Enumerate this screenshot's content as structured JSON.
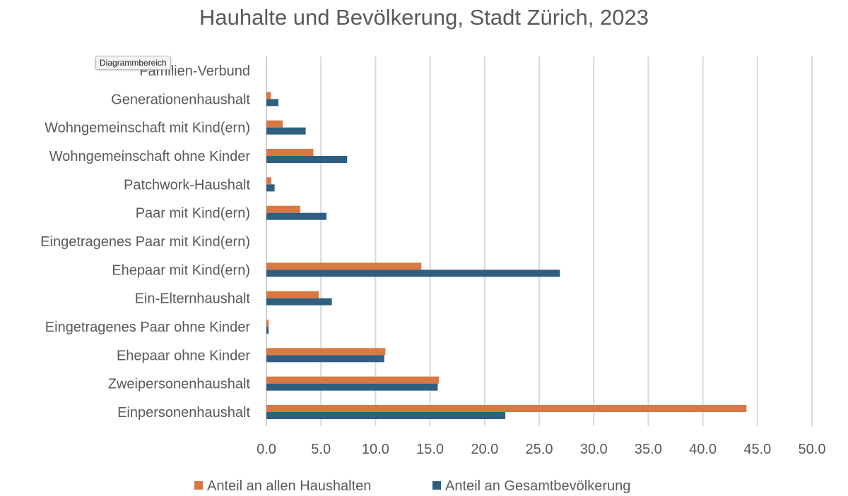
{
  "chart_data": {
    "type": "bar",
    "orientation": "horizontal",
    "title": "Hauhalte und Bevölkerung, Stadt Zürich, 2023",
    "xlabel": "",
    "ylabel": "",
    "xlim": [
      0,
      50
    ],
    "xticks": [
      "0.0",
      "5.0",
      "10.0",
      "15.0",
      "20.0",
      "25.0",
      "30.0",
      "35.0",
      "40.0",
      "45.0",
      "50.0"
    ],
    "grid": true,
    "legend_position": "bottom",
    "categories": [
      "Einpersonenhaushalt",
      "Zweipersonenhaushalt",
      "Ehepaar ohne Kinder",
      "Eingetragenes Paar ohne Kinder",
      "Ein-Elternhaushalt",
      "Ehepaar mit Kind(ern)",
      "Eingetragenes Paar mit Kind(ern)",
      "Paar mit Kind(ern)",
      "Patchwork-Haushalt",
      "Wohngemeinschaft ohne Kinder",
      "Wohngemeinschaft mit Kind(ern)",
      "Generationenhaushalt",
      "Familien-Verbund"
    ],
    "series": [
      {
        "name": "Anteil an allen Haushalten",
        "color": "#DA7843",
        "values": [
          44.0,
          15.8,
          10.9,
          0.2,
          4.8,
          14.2,
          0.0,
          3.1,
          0.45,
          4.3,
          1.5,
          0.4,
          0.0
        ]
      },
      {
        "name": "Anteil an Gesamtbevölkerung",
        "color": "#2E5F80",
        "values": [
          21.9,
          15.7,
          10.8,
          0.2,
          6.0,
          26.9,
          0.0,
          5.5,
          0.75,
          7.4,
          3.6,
          1.1,
          0.0
        ]
      }
    ]
  },
  "tooltip": "Diagrammbereich"
}
